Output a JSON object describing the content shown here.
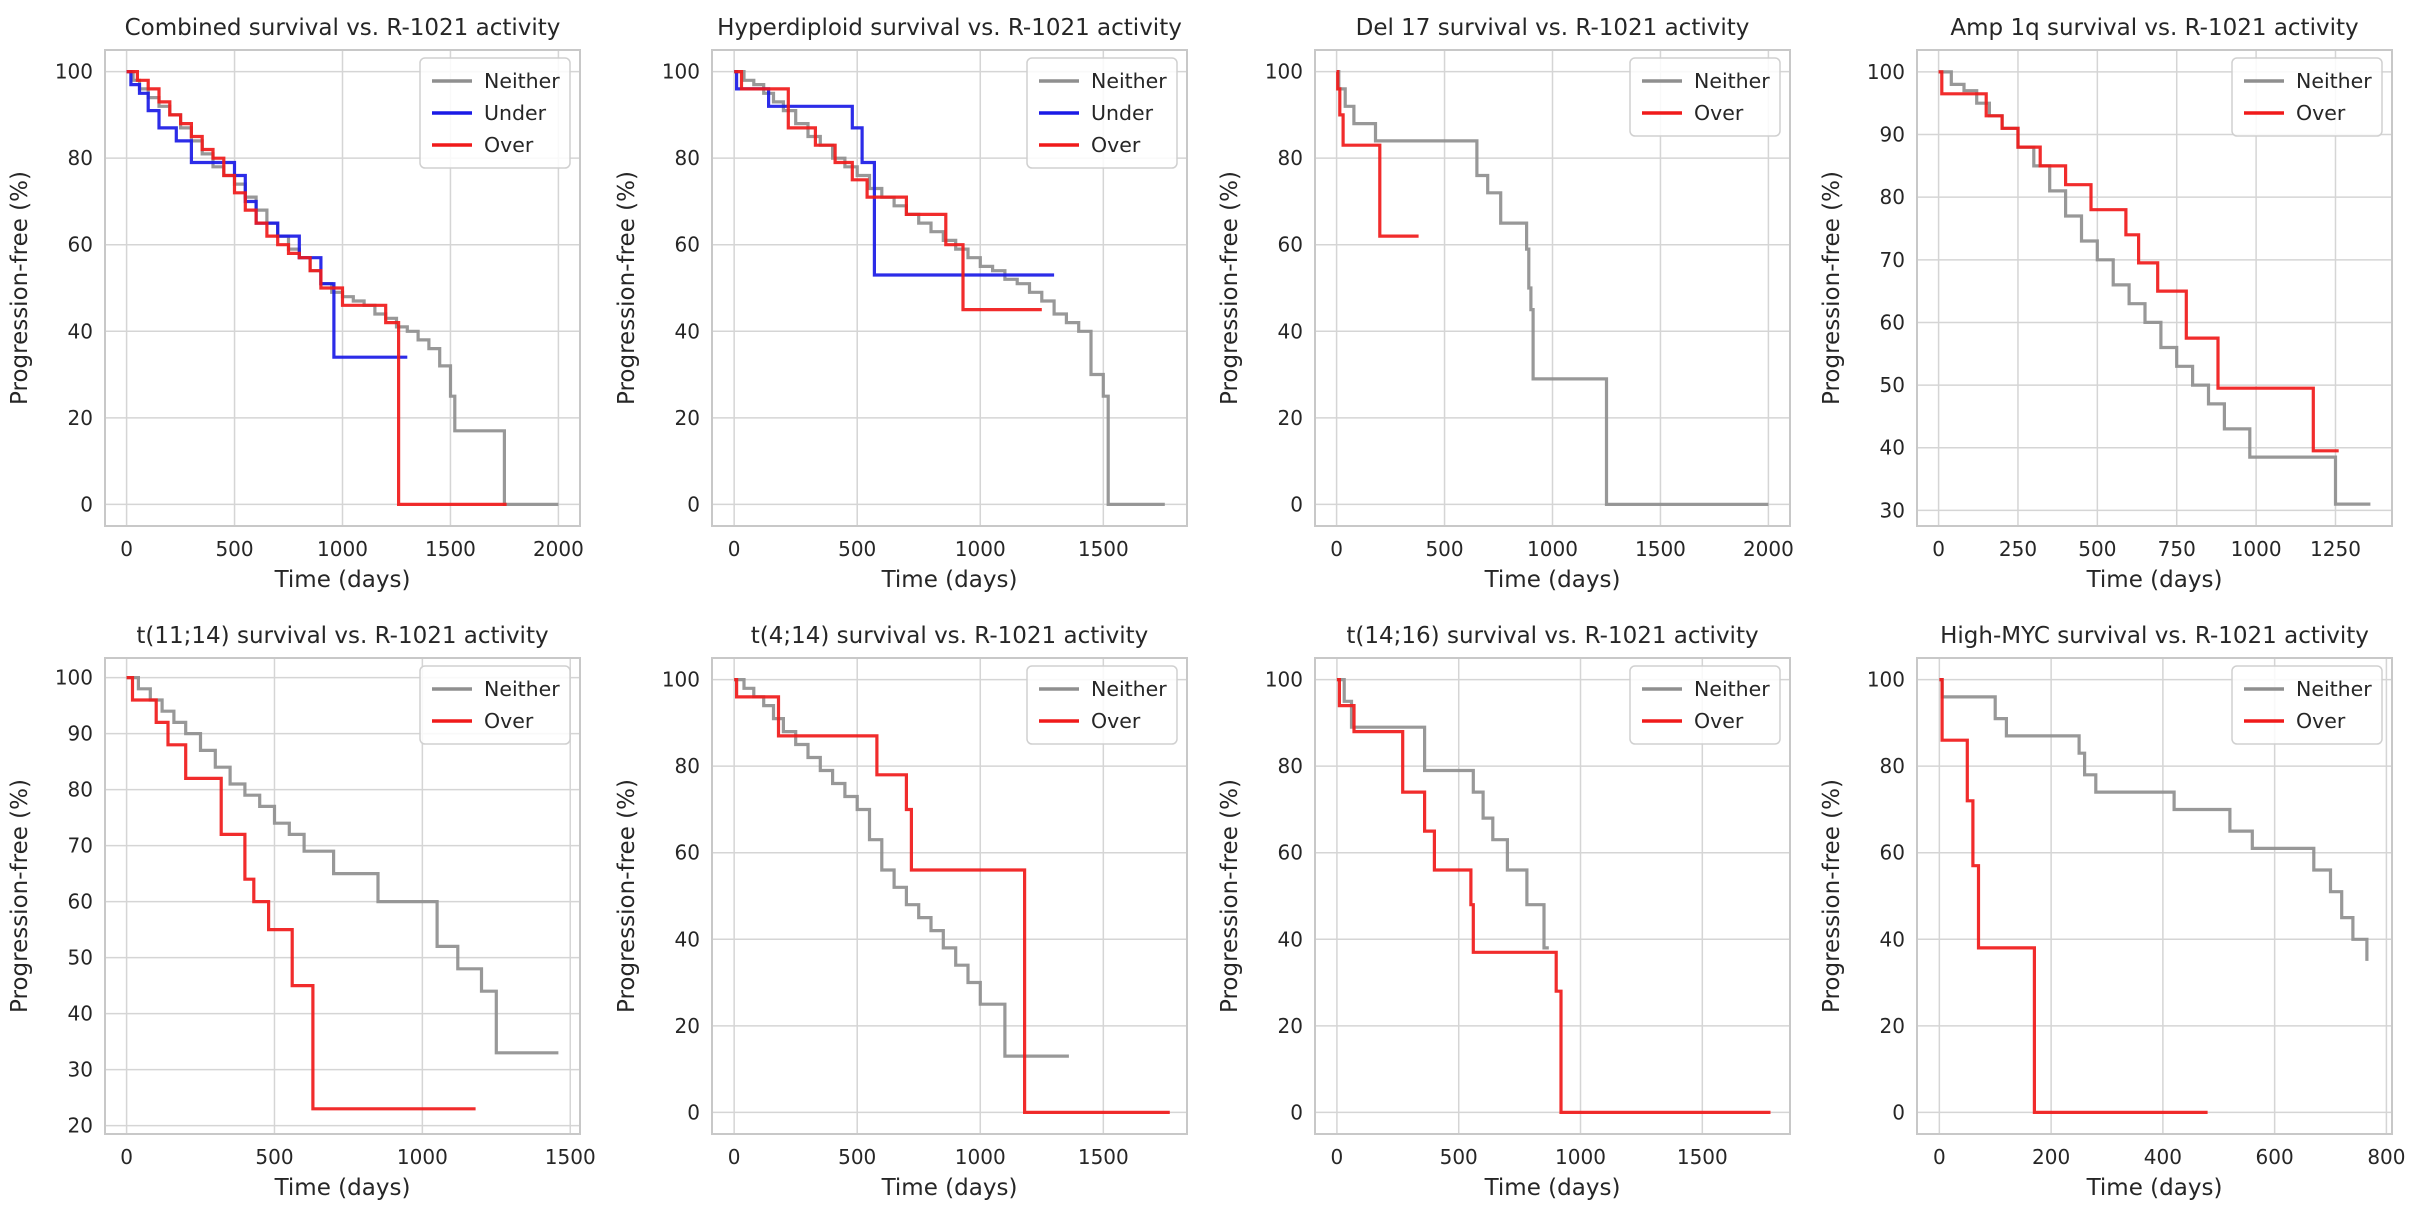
{
  "colors": {
    "Neither": "#8f8f8f",
    "Under": "#1a1ae6",
    "Over": "#f01a1a",
    "grid": "#d5d5d5",
    "frame": "#c8c8c8"
  },
  "chart_data": [
    {
      "type": "line",
      "title": "Combined survival vs. R-1021 activity",
      "xlabel": "Time (days)",
      "ylabel": "Progression-free (%)",
      "xlim": [
        -100,
        2100
      ],
      "ylim": [
        -5,
        105
      ],
      "xticks": [
        0,
        500,
        1000,
        1500,
        2000
      ],
      "yticks": [
        0,
        20,
        40,
        60,
        80,
        100
      ],
      "grid": true,
      "legend": "top-right",
      "series": [
        {
          "name": "Neither",
          "x": [
            0,
            30,
            60,
            100,
            150,
            200,
            250,
            300,
            350,
            400,
            450,
            500,
            550,
            600,
            650,
            700,
            750,
            800,
            850,
            900,
            950,
            1000,
            1050,
            1100,
            1150,
            1200,
            1250,
            1300,
            1350,
            1400,
            1450,
            1500,
            1520,
            1750,
            2000
          ],
          "y": [
            100,
            98,
            96,
            94,
            92,
            90,
            87,
            84,
            81,
            78,
            76,
            74,
            71,
            68,
            65,
            62,
            59,
            57,
            54,
            51,
            49,
            48,
            47,
            46,
            44,
            43,
            41,
            40,
            38,
            36,
            32,
            25,
            17,
            0,
            0
          ]
        },
        {
          "name": "Under",
          "x": [
            0,
            20,
            60,
            100,
            150,
            230,
            300,
            500,
            550,
            600,
            700,
            800,
            900,
            960,
            1300
          ],
          "y": [
            100,
            97,
            95,
            91,
            87,
            84,
            79,
            76,
            70,
            65,
            62,
            57,
            51,
            34,
            34
          ]
        },
        {
          "name": "Over",
          "x": [
            0,
            50,
            100,
            150,
            200,
            250,
            300,
            350,
            400,
            450,
            500,
            550,
            600,
            650,
            700,
            750,
            800,
            850,
            900,
            1000,
            1100,
            1200,
            1260,
            1760
          ],
          "y": [
            100,
            98,
            96,
            93,
            90,
            88,
            85,
            82,
            80,
            76,
            72,
            68,
            65,
            62,
            60,
            58,
            57,
            54,
            50,
            46,
            46,
            42,
            0,
            0
          ]
        }
      ]
    },
    {
      "type": "line",
      "title": "Hyperdiploid survival vs. R-1021 activity",
      "xlabel": "Time (days)",
      "ylabel": "Progression-free (%)",
      "xlim": [
        -90,
        1840
      ],
      "ylim": [
        -5,
        105
      ],
      "xticks": [
        0,
        500,
        1000,
        1500
      ],
      "yticks": [
        0,
        20,
        40,
        60,
        80,
        100
      ],
      "grid": true,
      "legend": "top-right",
      "series": [
        {
          "name": "Neither",
          "x": [
            0,
            40,
            80,
            120,
            160,
            200,
            250,
            300,
            350,
            400,
            450,
            500,
            550,
            600,
            650,
            700,
            750,
            800,
            850,
            900,
            950,
            1000,
            1050,
            1100,
            1150,
            1200,
            1250,
            1300,
            1350,
            1400,
            1450,
            1500,
            1520,
            1750
          ],
          "y": [
            100,
            98,
            97,
            95,
            93,
            91,
            88,
            85,
            83,
            80,
            78,
            76,
            73,
            71,
            69,
            67,
            65,
            63,
            61,
            59,
            57,
            55,
            54,
            52,
            51,
            49,
            47,
            44,
            42,
            40,
            30,
            25,
            0,
            0
          ]
        },
        {
          "name": "Under",
          "x": [
            0,
            10,
            140,
            480,
            520,
            570,
            1300
          ],
          "y": [
            100,
            96,
            92,
            87,
            79,
            53,
            53
          ]
        },
        {
          "name": "Over",
          "x": [
            0,
            30,
            220,
            330,
            410,
            480,
            540,
            700,
            860,
            930,
            1250
          ],
          "y": [
            100,
            96,
            87,
            83,
            79,
            75,
            71,
            67,
            60,
            45,
            45
          ]
        }
      ]
    },
    {
      "type": "line",
      "title": "Del 17 survival vs. R-1021 activity",
      "xlabel": "Time (days)",
      "ylabel": "Progression-free (%)",
      "xlim": [
        -100,
        2100
      ],
      "ylim": [
        -5,
        105
      ],
      "xticks": [
        0,
        500,
        1000,
        1500,
        2000
      ],
      "yticks": [
        0,
        20,
        40,
        60,
        80,
        100
      ],
      "grid": true,
      "legend": "top-right",
      "series": [
        {
          "name": "Neither",
          "x": [
            0,
            10,
            40,
            80,
            180,
            580,
            650,
            700,
            760,
            880,
            890,
            900,
            910,
            1250,
            2000
          ],
          "y": [
            100,
            96,
            92,
            88,
            84,
            84,
            76,
            72,
            65,
            59,
            50,
            45,
            29,
            0,
            0
          ]
        },
        {
          "name": "Over",
          "x": [
            0,
            5,
            15,
            30,
            200,
            380
          ],
          "y": [
            100,
            96,
            90,
            83,
            62,
            62
          ]
        }
      ]
    },
    {
      "type": "line",
      "title": "Amp 1q survival vs. R-1021 activity",
      "xlabel": "Time (days)",
      "ylabel": "Progression-free (%)",
      "xlim": [
        -68,
        1428
      ],
      "ylim": [
        27.5,
        103.5
      ],
      "xticks": [
        0,
        250,
        500,
        750,
        1000,
        1250
      ],
      "yticks": [
        30,
        40,
        50,
        60,
        70,
        80,
        90,
        100
      ],
      "grid": true,
      "legend": "top-right",
      "series": [
        {
          "name": "Neither",
          "x": [
            0,
            40,
            80,
            120,
            160,
            200,
            250,
            300,
            350,
            400,
            450,
            500,
            550,
            600,
            650,
            700,
            750,
            800,
            850,
            900,
            980,
            1250,
            1360
          ],
          "y": [
            100,
            98,
            97,
            95,
            93,
            91,
            88,
            85,
            81,
            77,
            73,
            70,
            66,
            63,
            60,
            56,
            53,
            50,
            47,
            43,
            38.5,
            31,
            31
          ]
        },
        {
          "name": "Over",
          "x": [
            0,
            10,
            150,
            200,
            250,
            320,
            400,
            480,
            590,
            630,
            690,
            780,
            880,
            1180,
            1260
          ],
          "y": [
            100,
            96.5,
            93,
            91,
            88,
            85,
            82,
            78,
            74,
            69.5,
            65,
            57.5,
            49.5,
            39.5,
            39.5
          ]
        }
      ]
    },
    {
      "type": "line",
      "title": "t(11;14) survival vs. R-1021 activity",
      "xlabel": "Time (days)",
      "ylabel": "Progression-free (%)",
      "xlim": [
        -73,
        1533
      ],
      "ylim": [
        18.5,
        103.5
      ],
      "xticks": [
        0,
        500,
        1000,
        1500
      ],
      "yticks": [
        20,
        30,
        40,
        50,
        60,
        70,
        80,
        90,
        100
      ],
      "grid": true,
      "legend": "top-right",
      "series": [
        {
          "name": "Neither",
          "x": [
            0,
            40,
            80,
            120,
            160,
            200,
            250,
            300,
            350,
            400,
            450,
            500,
            550,
            600,
            700,
            850,
            1050,
            1120,
            1200,
            1250,
            1460
          ],
          "y": [
            100,
            98,
            96,
            94,
            92,
            90,
            87,
            84,
            81,
            79,
            77,
            74,
            72,
            69,
            65,
            60,
            52,
            48,
            44,
            33,
            33
          ]
        },
        {
          "name": "Over",
          "x": [
            0,
            20,
            100,
            140,
            200,
            320,
            400,
            430,
            480,
            560,
            630,
            1180
          ],
          "y": [
            100,
            96,
            92,
            88,
            82,
            72,
            64,
            60,
            55,
            45,
            23,
            23
          ]
        }
      ]
    },
    {
      "type": "line",
      "title": "t(4;14) survival vs. R-1021 activity",
      "xlabel": "Time (days)",
      "ylabel": "Progression-free (%)",
      "xlim": [
        -90,
        1840
      ],
      "ylim": [
        -5,
        105
      ],
      "xticks": [
        0,
        500,
        1000,
        1500
      ],
      "yticks": [
        0,
        20,
        40,
        60,
        80,
        100
      ],
      "grid": true,
      "legend": "top-right",
      "series": [
        {
          "name": "Neither",
          "x": [
            0,
            40,
            80,
            120,
            160,
            200,
            250,
            300,
            350,
            400,
            450,
            500,
            550,
            600,
            650,
            700,
            750,
            800,
            850,
            900,
            950,
            1000,
            1100,
            1360
          ],
          "y": [
            100,
            98,
            96,
            94,
            91,
            88,
            85,
            82,
            79,
            76,
            73,
            70,
            63,
            56,
            52,
            48,
            45,
            42,
            38,
            34,
            30,
            25,
            13,
            13
          ]
        },
        {
          "name": "Over",
          "x": [
            0,
            10,
            180,
            580,
            700,
            720,
            1180,
            1770
          ],
          "y": [
            100,
            96,
            87,
            78,
            70,
            56,
            0,
            0
          ]
        }
      ]
    },
    {
      "type": "line",
      "title": "t(14;16) survival vs. R-1021 activity",
      "xlabel": "Time (days)",
      "ylabel": "Progression-free (%)",
      "xlim": [
        -90,
        1860
      ],
      "ylim": [
        -5,
        105
      ],
      "xticks": [
        0,
        500,
        1000,
        1500
      ],
      "yticks": [
        0,
        20,
        40,
        60,
        80,
        100
      ],
      "grid": true,
      "legend": "top-right",
      "series": [
        {
          "name": "Neither",
          "x": [
            0,
            30,
            60,
            360,
            560,
            600,
            640,
            700,
            780,
            850,
            870
          ],
          "y": [
            100,
            95,
            89,
            79,
            74,
            68,
            63,
            56,
            48,
            38,
            38
          ]
        },
        {
          "name": "Over",
          "x": [
            0,
            10,
            70,
            270,
            360,
            400,
            550,
            560,
            900,
            920,
            1780
          ],
          "y": [
            100,
            94,
            88,
            74,
            65,
            56,
            48,
            37,
            28,
            0,
            0
          ]
        }
      ]
    },
    {
      "type": "line",
      "title": "High-MYC survival vs. R-1021 activity",
      "xlabel": "Time (days)",
      "ylabel": "Progression-free (%)",
      "xlim": [
        -40,
        810
      ],
      "ylim": [
        -5,
        105
      ],
      "xticks": [
        0,
        200,
        400,
        600,
        800
      ],
      "yticks": [
        0,
        20,
        40,
        60,
        80,
        100
      ],
      "grid": true,
      "legend": "top-right",
      "series": [
        {
          "name": "Neither",
          "x": [
            0,
            5,
            100,
            120,
            250,
            260,
            280,
            420,
            490,
            520,
            560,
            670,
            700,
            720,
            740,
            765
          ],
          "y": [
            100,
            96,
            91,
            87,
            83,
            78,
            74,
            70,
            70,
            65,
            61,
            56,
            51,
            45,
            40,
            35
          ]
        },
        {
          "name": "Over",
          "x": [
            0,
            5,
            50,
            60,
            70,
            170,
            480
          ],
          "y": [
            100,
            86,
            72,
            57,
            38,
            0,
            0
          ]
        }
      ]
    }
  ]
}
